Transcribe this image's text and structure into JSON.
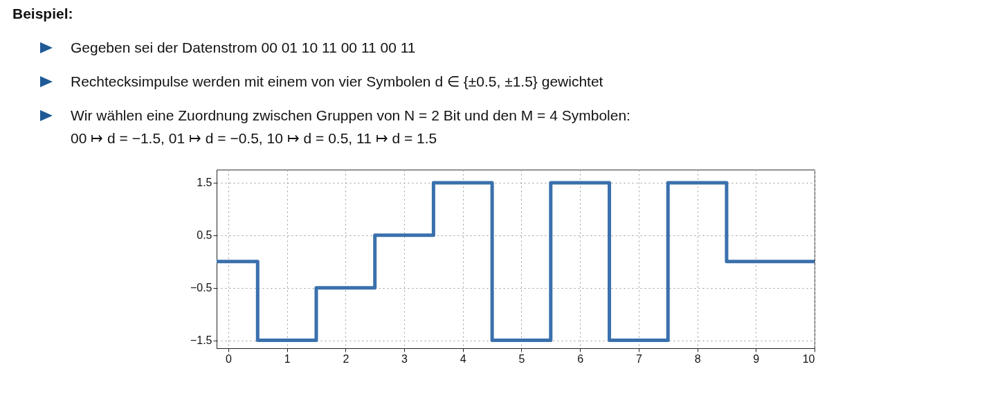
{
  "chart_data": {
    "type": "step",
    "title": "Beispiel:",
    "annotations": [
      "Gegeben sei der Datenstrom 00 01 10 11 00 11 00 11",
      "Rechtecksimpulse werden mit einem von vier Symbolen d ∈ {±0.5, ±1.5} gewichtet",
      "Wir wählen eine Zuordnung zwischen Gruppen von N = 2 Bit und den M = 4 Symbolen:\n00 ↦ d = −1.5,  01 ↦ d = −0.5,  10 ↦ d = 0.5,  11 ↦ d = 1.5"
    ],
    "x": [
      -0.2,
      0.5,
      1.5,
      2.5,
      3.5,
      4.5,
      5.5,
      6.5,
      7.5,
      8.5,
      10
    ],
    "series": [
      {
        "color": "#3a70ad",
        "values": [
          0,
          -1.5,
          -0.5,
          0.5,
          1.5,
          -1.5,
          1.5,
          -1.5,
          1.5,
          0,
          0
        ]
      }
    ],
    "xlim": [
      -0.2,
      10
    ],
    "xticks": [
      0,
      1,
      2,
      3,
      4,
      5,
      6,
      7,
      8,
      9,
      10
    ],
    "ylim": [
      -1.65,
      1.75
    ],
    "yticks": [
      -1.5,
      -0.5,
      0.5,
      1.5
    ],
    "grid": true,
    "line_style": "solid",
    "marker": "none"
  }
}
